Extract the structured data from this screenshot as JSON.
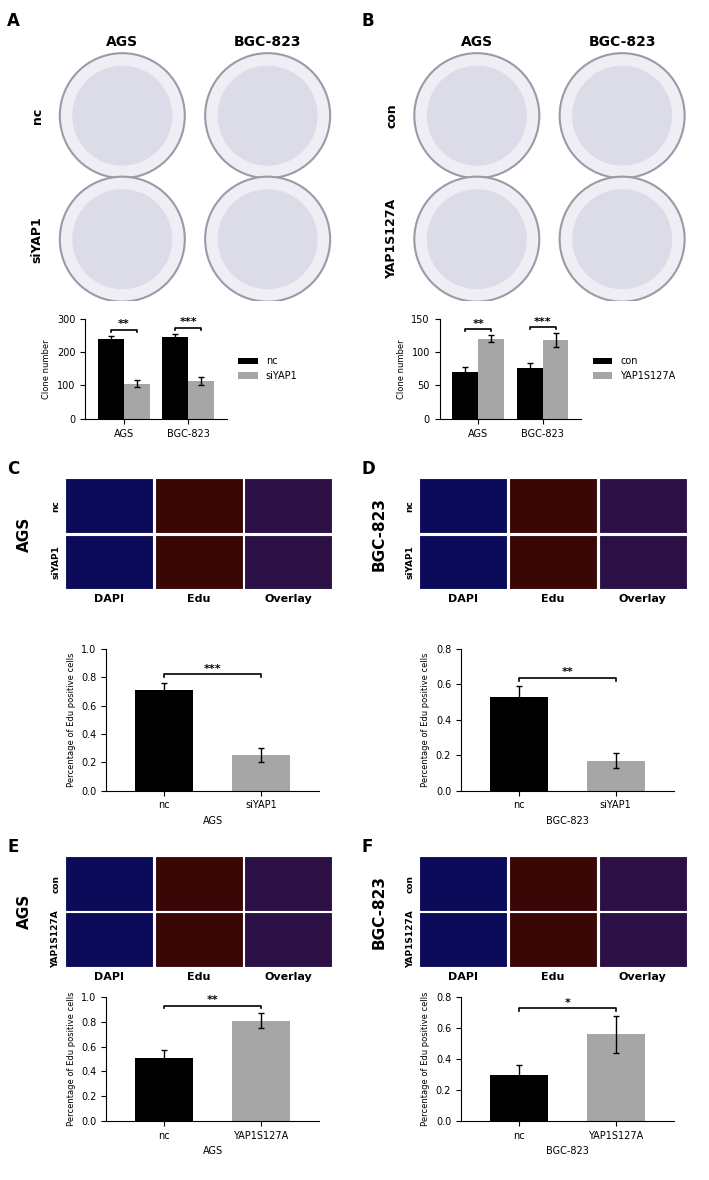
{
  "chart_data": [
    {
      "panel": "A",
      "type": "bar",
      "image_columns": [
        "AGS",
        "BGC-823"
      ],
      "image_rows": [
        "nc",
        "siYAP1"
      ],
      "categories": [
        "AGS",
        "BGC-823"
      ],
      "ylabel": "Clone number",
      "series": [
        {
          "name": "nc",
          "color": "#000000",
          "values": [
            238,
            245
          ],
          "errors": [
            10,
            10
          ]
        },
        {
          "name": "siYAP1",
          "color": "#a6a6a6",
          "values": [
            105,
            113
          ],
          "errors": [
            10,
            12
          ]
        }
      ],
      "significance": [
        "**",
        "***"
      ],
      "ylim": [
        0,
        300
      ],
      "yticks": [
        0,
        100,
        200,
        300
      ],
      "legend": "right"
    },
    {
      "panel": "B",
      "type": "bar",
      "image_columns": [
        "AGS",
        "BGC-823"
      ],
      "image_rows": [
        "con",
        "YAP1S127A"
      ],
      "categories": [
        "AGS",
        "BGC-823"
      ],
      "ylabel": "Clone number",
      "series": [
        {
          "name": "con",
          "color": "#000000",
          "values": [
            70,
            76
          ],
          "errors": [
            8,
            8
          ]
        },
        {
          "name": "YAP1S127A",
          "color": "#a6a6a6",
          "values": [
            120,
            118
          ],
          "errors": [
            5,
            10
          ]
        }
      ],
      "significance": [
        "**",
        "***"
      ],
      "ylim": [
        0,
        150
      ],
      "yticks": [
        0,
        50,
        100,
        150
      ],
      "legend": "right"
    },
    {
      "panel": "C",
      "type": "bar",
      "image_side_label": "AGS",
      "image_columns": [
        "DAPI",
        "Edu",
        "Overlay"
      ],
      "image_rows": [
        "nc",
        "siYAP1"
      ],
      "categories": [
        "nc",
        "siYAP1"
      ],
      "xlabel": "AGS",
      "ylabel": "Percentage of Edu positive cells",
      "values": [
        0.71,
        0.25
      ],
      "errors": [
        0.05,
        0.05
      ],
      "colors": [
        "#000000",
        "#a6a6a6"
      ],
      "significance": [
        "***"
      ],
      "ylim": [
        0,
        1.0
      ],
      "yticks": [
        {
          "value": 0,
          "label": "0.0"
        },
        {
          "value": 0.2,
          "label": "0.2"
        },
        {
          "value": 0.4,
          "label": "0.4"
        },
        {
          "value": 0.6,
          "label": "0.6"
        },
        {
          "value": 0.8,
          "label": "0.8"
        },
        {
          "value": 1.0,
          "label": "1.0"
        }
      ]
    },
    {
      "panel": "D",
      "type": "bar",
      "image_side_label": "BGC-823",
      "image_columns": [
        "DAPI",
        "Edu",
        "Overlay"
      ],
      "image_rows": [
        "nc",
        "siYAP1"
      ],
      "categories": [
        "nc",
        "siYAP1"
      ],
      "xlabel": "BGC-823",
      "ylabel": "Percentage of Edu positive cells",
      "values": [
        0.53,
        0.17
      ],
      "errors": [
        0.06,
        0.04
      ],
      "colors": [
        "#000000",
        "#a6a6a6"
      ],
      "significance": [
        "**"
      ],
      "ylim": [
        0,
        0.8
      ],
      "yticks": [
        {
          "value": 0,
          "label": "0.0"
        },
        {
          "value": 0.2,
          "label": "0.2"
        },
        {
          "value": 0.4,
          "label": "0.4"
        },
        {
          "value": 0.6,
          "label": "0.6"
        },
        {
          "value": 0.8,
          "label": "0.8"
        }
      ]
    },
    {
      "panel": "E",
      "type": "bar",
      "image_side_label": "AGS",
      "image_columns": [
        "DAPI",
        "Edu",
        "Overlay"
      ],
      "image_rows": [
        "con",
        "YAP1S127A"
      ],
      "categories": [
        "nc",
        "YAP1S127A"
      ],
      "xlabel": "AGS",
      "ylabel": "Percentage of Edu positive cells",
      "values": [
        0.51,
        0.81
      ],
      "errors": [
        0.06,
        0.06
      ],
      "colors": [
        "#000000",
        "#a6a6a6"
      ],
      "significance": [
        "**"
      ],
      "ylim": [
        0,
        1.0
      ],
      "yticks": [
        {
          "value": 0,
          "label": "0.0"
        },
        {
          "value": 0.2,
          "label": "0.2"
        },
        {
          "value": 0.4,
          "label": "0.4"
        },
        {
          "value": 0.6,
          "label": "0.6"
        },
        {
          "value": 0.8,
          "label": "0.8"
        },
        {
          "value": 1.0,
          "label": "1.0"
        }
      ]
    },
    {
      "panel": "F",
      "type": "bar",
      "image_side_label": "BGC-823",
      "image_columns": [
        "DAPI",
        "Edu",
        "Overlay"
      ],
      "image_rows": [
        "con",
        "YAP1S127A"
      ],
      "categories": [
        "nc",
        "YAP1S127A"
      ],
      "xlabel": "BGC-823",
      "ylabel": "Percentage of Edu positive cells",
      "values": [
        0.3,
        0.56
      ],
      "errors": [
        0.06,
        0.12
      ],
      "colors": [
        "#000000",
        "#a6a6a6"
      ],
      "significance": [
        "*"
      ],
      "ylim": [
        0,
        0.8
      ],
      "yticks": [
        {
          "value": 0,
          "label": "0.0"
        },
        {
          "value": 0.2,
          "label": "0.2"
        },
        {
          "value": 0.4,
          "label": "0.4"
        },
        {
          "value": 0.6,
          "label": "0.6"
        },
        {
          "value": 0.8,
          "label": "0.8"
        }
      ]
    }
  ]
}
